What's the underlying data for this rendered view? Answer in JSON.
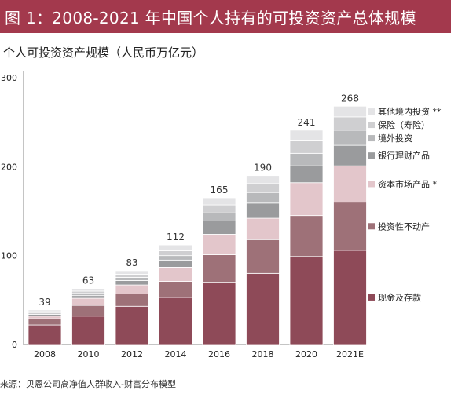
{
  "title": "图 1：2008-2021 年中国个人持有的可投资资产总体规模",
  "unit_label": "个人可投资资产规模（人民币万亿元）",
  "source": "来源：贝恩公司高净值人群收入-财富分布模型",
  "chart_data": {
    "type": "bar",
    "stacked": true,
    "categories": [
      "2008",
      "2010",
      "2012",
      "2014",
      "2016",
      "2018",
      "2020",
      "2021E"
    ],
    "totals": [
      "39",
      "63",
      "83",
      "112",
      "165",
      "190",
      "241",
      "268"
    ],
    "ylim": [
      0,
      300
    ],
    "yticks": [
      "0",
      "100",
      "200",
      "300"
    ],
    "legend_position": "right",
    "series": [
      {
        "name": "现金及存款",
        "color": "#8e4a58",
        "values": [
          22,
          32,
          43,
          53,
          70,
          80,
          99,
          106
        ]
      },
      {
        "name": "投资性不动产",
        "color": "#9e7178",
        "values": [
          7,
          12,
          14,
          18,
          31,
          38,
          46,
          54
        ]
      },
      {
        "name": "资本市场产品 *",
        "color": "#e3c6cb",
        "values": [
          3,
          8,
          10,
          16,
          23,
          24,
          37,
          41
        ]
      },
      {
        "name": "银行理财产品",
        "color": "#9a9b9d",
        "values": [
          2,
          3,
          5,
          8,
          15,
          17,
          19,
          23
        ]
      },
      {
        "name": "境外投资",
        "color": "#b8b9bb",
        "values": [
          1.5,
          2.5,
          3.5,
          5,
          9,
          12,
          14,
          17
        ]
      },
      {
        "name": "保险（寿险）",
        "color": "#cfcfd1",
        "values": [
          1.5,
          2.5,
          3.5,
          5.5,
          9,
          10,
          14,
          15
        ]
      },
      {
        "name": "其他境内投资 **",
        "color": "#e4e4e6",
        "values": [
          2,
          3,
          4,
          6.5,
          8,
          9,
          12,
          12
        ]
      }
    ]
  }
}
